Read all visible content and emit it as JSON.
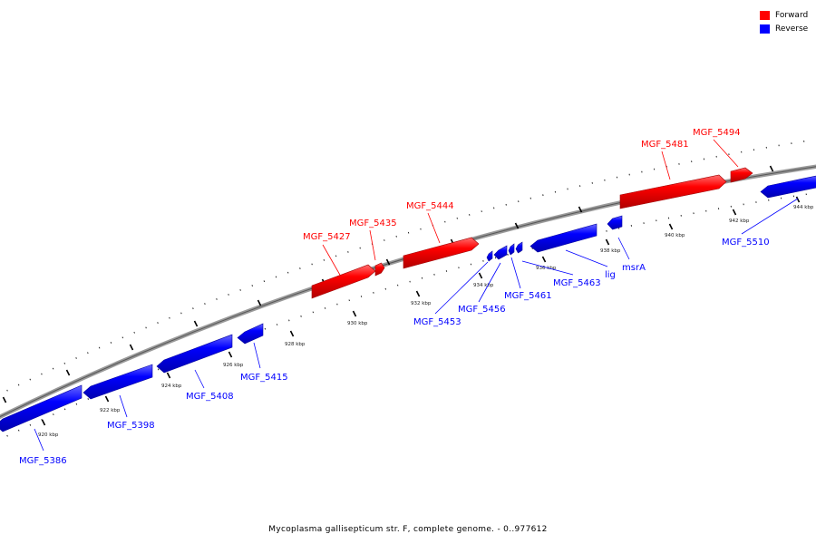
{
  "legend": {
    "forward_label": "Forward",
    "reverse_label": "Reverse",
    "forward_color": "#ff0000",
    "reverse_color": "#0000ff"
  },
  "caption": "Mycoplasma gallisepticum str. F, complete genome. - 0..977612",
  "scale_labels": [
    "920 kbp",
    "922 kbp",
    "924 kbp",
    "926 kbp",
    "928 kbp",
    "930 kbp",
    "932 kbp",
    "934 kbp",
    "936 kbp",
    "938 kbp",
    "940 kbp",
    "942 kbp",
    "944 kbp"
  ],
  "genes": [
    {
      "name": "MGF_5386",
      "strand": "reverse"
    },
    {
      "name": "MGF_5398",
      "strand": "reverse"
    },
    {
      "name": "MGF_5408",
      "strand": "reverse"
    },
    {
      "name": "MGF_5415",
      "strand": "reverse"
    },
    {
      "name": "MGF_5427",
      "strand": "forward"
    },
    {
      "name": "MGF_5435",
      "strand": "forward"
    },
    {
      "name": "MGF_5444",
      "strand": "forward"
    },
    {
      "name": "MGF_5453",
      "strand": "reverse"
    },
    {
      "name": "MGF_5456",
      "strand": "reverse"
    },
    {
      "name": "MGF_5461",
      "strand": "reverse"
    },
    {
      "name": "MGF_5463",
      "strand": "reverse"
    },
    {
      "name": "lig",
      "strand": "reverse"
    },
    {
      "name": "msrA",
      "strand": "reverse"
    },
    {
      "name": "MGF_5481",
      "strand": "forward"
    },
    {
      "name": "MGF_5494",
      "strand": "forward"
    },
    {
      "name": "MGF_5510",
      "strand": "reverse"
    }
  ]
}
